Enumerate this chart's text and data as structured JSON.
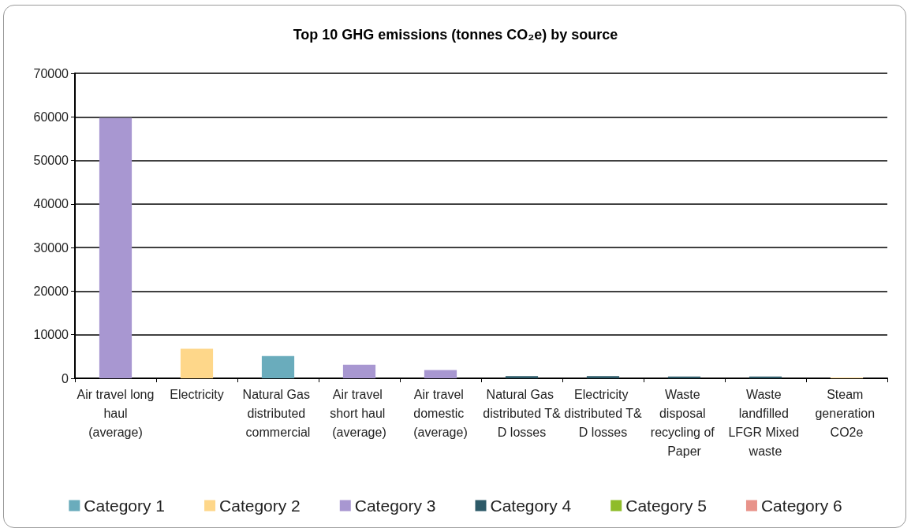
{
  "chart_data": {
    "type": "bar",
    "title": "Top 10 GHG emissions (tonnes CO₂e) by source",
    "categories": [
      "Air travel long haul (average)",
      "Electricity",
      "Natural Gas distributed commercial",
      "Air travel short haul (average)",
      "Air travel domestic (average)",
      "Natural Gas distributed T&D losses",
      "Electricity distributed T&D losses",
      "Waste disposal recycling of Paper",
      "Waste landfilled LFGR Mixed waste",
      "Steam generation CO2e"
    ],
    "series": [
      {
        "name": "Category 1",
        "color": "#6aacbc",
        "values": [
          null,
          null,
          5100,
          null,
          null,
          null,
          null,
          null,
          null,
          null
        ]
      },
      {
        "name": "Category 2",
        "color": "#fed78a",
        "values": [
          null,
          6800,
          null,
          null,
          null,
          null,
          null,
          null,
          null,
          200
        ]
      },
      {
        "name": "Category 3",
        "color": "#a897d1",
        "values": [
          59800,
          null,
          null,
          3100,
          1900,
          null,
          null,
          null,
          null,
          null
        ]
      },
      {
        "name": "Category 4",
        "color": "#2d5a68",
        "values": [
          null,
          null,
          null,
          null,
          null,
          500,
          500,
          400,
          400,
          null
        ]
      },
      {
        "name": "Category 5",
        "color": "#8fbc2a",
        "values": [
          null,
          null,
          null,
          null,
          null,
          null,
          null,
          null,
          null,
          null
        ]
      },
      {
        "name": "Category 6",
        "color": "#e8938a",
        "values": [
          null,
          null,
          null,
          null,
          null,
          null,
          null,
          null,
          null,
          null
        ]
      }
    ],
    "stacked": true,
    "ylim": [
      0,
      70000
    ],
    "yticks": [
      0,
      10000,
      20000,
      30000,
      40000,
      50000,
      60000,
      70000
    ],
    "grid": "y",
    "legend": "bottom"
  }
}
